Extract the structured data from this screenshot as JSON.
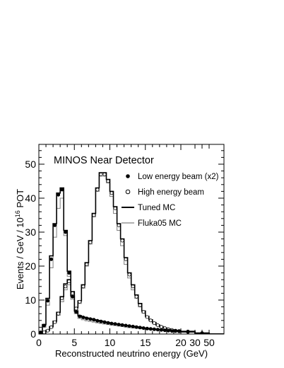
{
  "chart_data": {
    "type": "line",
    "title": "MINOS Near Detector",
    "xlabel": "Reconstructed neutrino energy (GeV)",
    "ylabel": "Events / GeV / 10",
    "ylabel_sup": "16",
    "ylabel_unit": "POT",
    "xlim": [
      0,
      60
    ],
    "ylim": [
      0,
      55
    ],
    "x_scale": "piecewise: linear 0-20 GeV, compressed 20-60 GeV",
    "x_ticks": [
      "0",
      "5",
      "10",
      "15",
      "20",
      "30",
      "50"
    ],
    "x_tick_values": [
      0,
      5,
      10,
      15,
      20,
      30,
      50
    ],
    "y_ticks": [
      "0",
      "10",
      "20",
      "30",
      "40",
      "50"
    ],
    "y_tick_values": [
      0,
      10,
      20,
      30,
      40,
      50
    ],
    "legend_position": "top-right",
    "legend": [
      {
        "label": "Low energy beam (x2)",
        "marker": "filled-circle"
      },
      {
        "label": "High energy beam",
        "marker": "open-circle"
      },
      {
        "label": "Tuned MC",
        "marker": "thick-line"
      },
      {
        "label": "Fluka05 MC",
        "marker": "thin-gray-line"
      }
    ],
    "bin_edges": [
      0,
      0.5,
      1,
      1.5,
      2,
      2.5,
      3,
      3.5,
      4,
      4.5,
      5,
      5.5,
      6,
      6.5,
      7,
      7.5,
      8,
      8.5,
      9,
      9.5,
      10,
      10.5,
      11,
      11.5,
      12,
      12.5,
      13,
      13.5,
      14,
      14.5,
      15,
      15.5,
      16,
      16.5,
      17,
      17.5,
      18,
      18.5,
      19,
      19.5,
      20,
      30,
      50,
      60
    ],
    "series": [
      {
        "name": "Low energy beam (x2)",
        "style": "data-filled",
        "values": [
          0.5,
          2.5,
          9.8,
          22,
          32,
          41,
          42.5,
          30,
          18,
          11,
          6.5,
          5.2,
          4.9,
          4.6,
          4.4,
          4.2,
          3.9,
          3.7,
          3.5,
          3.3,
          3.1,
          2.95,
          2.8,
          2.65,
          2.5,
          2.35,
          2.2,
          2.05,
          1.9,
          1.75,
          1.6,
          1.5,
          1.4,
          1.3,
          1.2,
          1.1,
          1.0,
          0.9,
          0.85,
          0.8,
          0.6,
          0.25,
          0.05
        ]
      },
      {
        "name": "High energy beam",
        "style": "data-open",
        "values": [
          0.2,
          0.5,
          1,
          2,
          3.5,
          6,
          10.5,
          14,
          15.5,
          12,
          7.5,
          9.5,
          14,
          20.5,
          27,
          35,
          42.5,
          47,
          47,
          45,
          41.5,
          37,
          32,
          27.5,
          22,
          17.5,
          14,
          11,
          8.5,
          6.5,
          5,
          4,
          3.2,
          2.6,
          2.1,
          1.7,
          1.4,
          1.2,
          1.0,
          0.9,
          0.75,
          0.3,
          0.05
        ]
      },
      {
        "name": "Tuned MC (low energy)",
        "style": "mc-tuned",
        "values": [
          0.6,
          2.8,
          10.5,
          23,
          32.5,
          41.5,
          43,
          30.5,
          18.5,
          11.2,
          6.8,
          5.4,
          5.0,
          4.7,
          4.5,
          4.2,
          4.0,
          3.8,
          3.55,
          3.35,
          3.15,
          3.0,
          2.85,
          2.7,
          2.55,
          2.4,
          2.25,
          2.1,
          1.95,
          1.8,
          1.65,
          1.55,
          1.45,
          1.35,
          1.25,
          1.15,
          1.05,
          0.95,
          0.9,
          0.85,
          0.65,
          0.27,
          0.05
        ]
      },
      {
        "name": "Tuned MC (high energy)",
        "style": "mc-tuned",
        "values": [
          0.2,
          0.6,
          1.1,
          2.2,
          3.8,
          6.4,
          11,
          14.8,
          16,
          12.5,
          7.8,
          9.8,
          14.5,
          21,
          27.5,
          35.5,
          43,
          47.5,
          47.5,
          45.5,
          42,
          37.5,
          32.5,
          28,
          22.5,
          18,
          14.5,
          11.5,
          9,
          6.8,
          5.2,
          4.2,
          3.4,
          2.7,
          2.2,
          1.8,
          1.5,
          1.25,
          1.05,
          0.95,
          0.8,
          0.3,
          0.05
        ]
      },
      {
        "name": "Fluka05 MC (low energy)",
        "style": "mc-fluka",
        "values": [
          0.4,
          2.0,
          8.5,
          19.5,
          28.5,
          37,
          40,
          29,
          17,
          10.2,
          6.0,
          4.6,
          4.2,
          3.9,
          3.7,
          3.5,
          3.3,
          3.1,
          2.95,
          2.8,
          2.65,
          2.5,
          2.35,
          2.2,
          2.05,
          1.9,
          1.8,
          1.7,
          1.6,
          1.5,
          1.4,
          1.3,
          1.2,
          1.1,
          1.0,
          0.95,
          0.9,
          0.85,
          0.8,
          0.75,
          0.55,
          0.22,
          0.05
        ]
      },
      {
        "name": "Fluka05 MC (high energy)",
        "style": "mc-fluka",
        "values": [
          0.15,
          0.4,
          0.9,
          1.8,
          3.2,
          5.5,
          9.5,
          13,
          14.5,
          11,
          7,
          9,
          13.5,
          20,
          26.5,
          34.5,
          42,
          46.5,
          46.5,
          44.5,
          40.5,
          35.5,
          30.5,
          26,
          20.5,
          16.5,
          13,
          10.5,
          8,
          6.2,
          4.8,
          3.8,
          3.0,
          2.4,
          1.9,
          1.6,
          1.3,
          1.1,
          0.95,
          0.85,
          0.7,
          0.28,
          0.05
        ]
      }
    ]
  }
}
